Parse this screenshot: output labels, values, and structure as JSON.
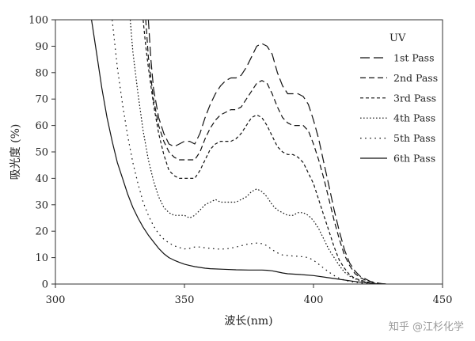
{
  "chart_data": {
    "type": "line",
    "xlabel": "波长(nm)",
    "ylabel": "吸光度 (%)",
    "xlim": [
      300,
      450
    ],
    "ylim": [
      0,
      100
    ],
    "x_ticks": [
      "300",
      "350",
      "400",
      "450"
    ],
    "y_ticks": [
      "0",
      "10",
      "20",
      "30",
      "40",
      "50",
      "60",
      "70",
      "80",
      "90",
      "100"
    ],
    "legend_title": "UV",
    "legend_position": "top-right",
    "grid": false,
    "series": [
      {
        "name": "1st Pass",
        "dash": "long-dash",
        "x": [
          336,
          337,
          338,
          340,
          342,
          344,
          346,
          348,
          350,
          352,
          354,
          356,
          358,
          360,
          362,
          364,
          366,
          368,
          370,
          372,
          374,
          376,
          378,
          380,
          382,
          384,
          386,
          388,
          390,
          392,
          394,
          396,
          398,
          400,
          402,
          404,
          406,
          408,
          410,
          412,
          414,
          416,
          418,
          420,
          422,
          424,
          426,
          428
        ],
        "y": [
          100,
          85,
          74,
          63,
          57,
          53,
          52,
          53,
          54,
          54,
          53,
          57,
          63,
          68,
          72,
          75,
          77,
          78,
          78,
          79,
          82,
          86,
          90,
          91,
          90,
          87,
          80,
          75,
          72,
          72,
          72,
          71,
          68,
          62,
          55,
          46,
          37,
          28,
          20,
          13,
          8,
          5,
          3,
          2,
          1,
          0.5,
          0.2,
          0
        ]
      },
      {
        "name": "2nd Pass",
        "dash": "dash",
        "x": [
          335,
          336,
          338,
          340,
          342,
          344,
          346,
          348,
          350,
          352,
          354,
          356,
          358,
          360,
          362,
          364,
          366,
          368,
          370,
          372,
          374,
          376,
          378,
          380,
          382,
          384,
          386,
          388,
          390,
          392,
          394,
          396,
          398,
          400,
          402,
          404,
          406,
          408,
          410,
          412,
          414,
          416,
          418,
          420,
          422,
          424,
          426,
          428
        ],
        "y": [
          100,
          86,
          70,
          60,
          54,
          50,
          48,
          47,
          47,
          47,
          47,
          50,
          55,
          59,
          62,
          64,
          65,
          66,
          66,
          67,
          70,
          73,
          76,
          77,
          76,
          72,
          67,
          63,
          61,
          60,
          60,
          60,
          58,
          53,
          47,
          40,
          32,
          24,
          17,
          11,
          7,
          4,
          2.5,
          1.5,
          1,
          0.5,
          0.2,
          0
        ]
      },
      {
        "name": "3rd Pass",
        "dash": "short-dash",
        "x": [
          334,
          335,
          336,
          338,
          340,
          342,
          344,
          346,
          348,
          350,
          352,
          354,
          356,
          358,
          360,
          362,
          364,
          366,
          368,
          370,
          372,
          374,
          376,
          378,
          380,
          382,
          384,
          386,
          388,
          390,
          392,
          394,
          396,
          398,
          400,
          402,
          404,
          406,
          408,
          410,
          412,
          414,
          416,
          418,
          420,
          422,
          424,
          426,
          428
        ],
        "y": [
          100,
          90,
          82,
          68,
          57,
          49,
          43,
          41,
          40,
          40,
          40,
          40,
          43,
          47,
          51,
          53,
          54,
          54,
          54,
          55,
          57,
          60,
          63,
          64,
          63,
          60,
          56,
          52,
          50,
          49,
          49,
          48,
          46,
          42,
          38,
          32,
          26,
          20,
          14,
          9,
          6,
          3.5,
          2.2,
          1.5,
          1,
          0.5,
          0.3,
          0.1,
          0
        ]
      },
      {
        "name": "4th Pass",
        "dash": "dot",
        "x": [
          329,
          330,
          332,
          334,
          336,
          338,
          340,
          342,
          344,
          346,
          348,
          350,
          352,
          354,
          356,
          358,
          360,
          362,
          364,
          366,
          368,
          370,
          372,
          374,
          376,
          378,
          380,
          382,
          384,
          386,
          388,
          390,
          392,
          394,
          396,
          398,
          400,
          402,
          404,
          406,
          408,
          410,
          412,
          414,
          416,
          418,
          420,
          422,
          424,
          426,
          428
        ],
        "y": [
          100,
          88,
          72,
          58,
          47,
          39,
          33,
          29,
          27,
          26,
          26,
          26,
          25,
          26,
          28,
          30,
          31,
          32,
          31,
          31,
          31,
          31,
          32,
          33,
          35,
          36,
          35,
          33,
          30,
          28,
          27,
          26,
          26,
          27,
          27,
          26,
          24,
          21,
          17,
          13,
          10,
          7,
          4.5,
          3,
          2,
          1.3,
          0.8,
          0.4,
          0.2,
          0.1,
          0
        ]
      },
      {
        "name": "5th Pass",
        "dash": "sparse-dot",
        "x": [
          322,
          324,
          326,
          328,
          330,
          332,
          334,
          336,
          338,
          340,
          342,
          344,
          346,
          348,
          350,
          352,
          354,
          356,
          358,
          360,
          362,
          364,
          366,
          368,
          370,
          372,
          374,
          376,
          378,
          380,
          382,
          384,
          386,
          388,
          390,
          392,
          394,
          396,
          398,
          400,
          402,
          404,
          406,
          408,
          410,
          412,
          414,
          416,
          418,
          420,
          422,
          424,
          426,
          428
        ],
        "y": [
          100,
          82,
          68,
          56,
          46,
          38,
          31,
          26,
          22,
          19,
          17,
          15.5,
          14.5,
          13.8,
          13.3,
          13.5,
          14,
          14,
          13.7,
          13.5,
          13.3,
          13.2,
          13.3,
          13.6,
          14,
          14.5,
          15,
          15.3,
          15.5,
          15.3,
          14.5,
          13,
          11.8,
          11,
          10.8,
          10.6,
          10.5,
          10.3,
          10,
          9,
          7.5,
          6,
          4.5,
          3.2,
          2.2,
          1.5,
          1,
          0.7,
          0.4,
          0.2,
          0.1,
          0.05,
          0,
          0
        ]
      },
      {
        "name": "6th Pass",
        "dash": "solid",
        "x": [
          314,
          316,
          318,
          320,
          322,
          324,
          326,
          328,
          330,
          332,
          334,
          336,
          338,
          340,
          342,
          344,
          346,
          348,
          350,
          352,
          354,
          356,
          358,
          360,
          365,
          370,
          375,
          380,
          382,
          384,
          386,
          388,
          390,
          395,
          400,
          405,
          410,
          415,
          420,
          425,
          428
        ],
        "y": [
          100,
          87,
          74,
          63,
          54,
          46,
          40,
          34,
          29,
          25,
          21.5,
          18.5,
          16,
          13.5,
          11.5,
          10,
          9,
          8.2,
          7.5,
          7,
          6.6,
          6.3,
          6,
          5.8,
          5.6,
          5.4,
          5.3,
          5.3,
          5.2,
          5,
          4.6,
          4.2,
          3.9,
          3.6,
          3.2,
          2.5,
          1.8,
          1.1,
          0.5,
          0.1,
          0
        ]
      }
    ]
  },
  "watermark": "知乎 @江杉化学"
}
